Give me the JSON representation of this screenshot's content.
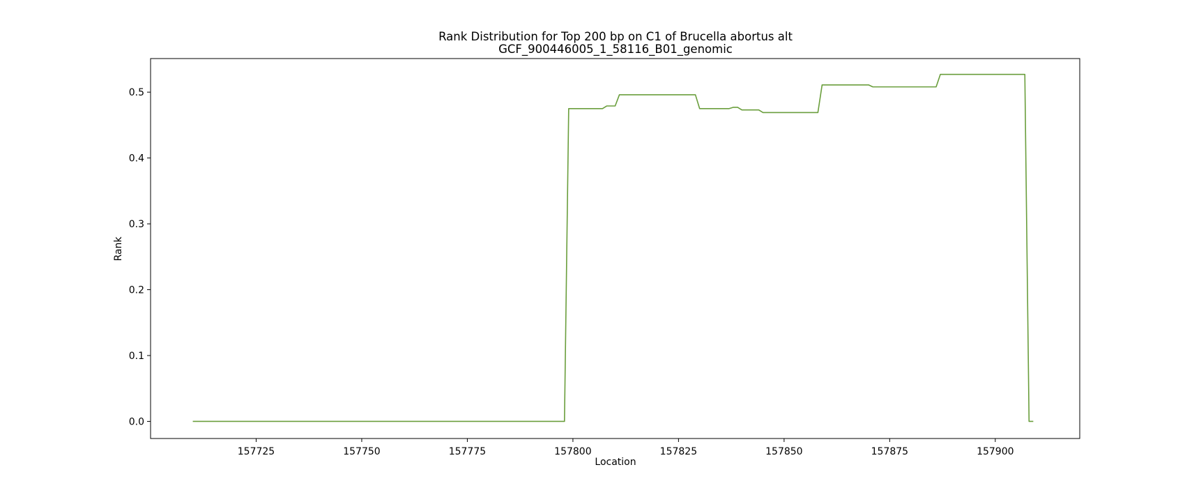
{
  "chart_data": {
    "type": "line",
    "title": "Rank Distribution for Top 200 bp on C1 of Brucella abortus alt",
    "subtitle": "GCF_900446005_1_58116_B01_genomic",
    "xlabel": "Location",
    "ylabel": "Rank",
    "xlim": [
      157700,
      157920
    ],
    "ylim": [
      -0.026,
      0.551
    ],
    "xticks": [
      157725,
      157750,
      157775,
      157800,
      157825,
      157850,
      157875,
      157900
    ],
    "yticks": [
      0.0,
      0.1,
      0.2,
      0.3,
      0.4,
      0.5
    ],
    "xtick_labels": [
      "157725",
      "157750",
      "157775",
      "157800",
      "157825",
      "157850",
      "157875",
      "157900"
    ],
    "ytick_labels": [
      "0.0",
      "0.1",
      "0.2",
      "0.3",
      "0.4",
      "0.5"
    ],
    "grid": false,
    "series": [
      {
        "color": "#6a9e3c",
        "x": [
          157710,
          157798,
          157799,
          157807,
          157808,
          157810,
          157811,
          157829,
          157830,
          157837,
          157838,
          157839,
          157840,
          157844,
          157845,
          157858,
          157859,
          157870,
          157871,
          157886,
          157887,
          157907,
          157908,
          157909
        ],
        "y": [
          0.0,
          0.0,
          0.475,
          0.475,
          0.479,
          0.479,
          0.496,
          0.496,
          0.475,
          0.475,
          0.477,
          0.477,
          0.473,
          0.473,
          0.469,
          0.469,
          0.511,
          0.511,
          0.508,
          0.508,
          0.527,
          0.527,
          0.0,
          0.0
        ]
      }
    ]
  }
}
